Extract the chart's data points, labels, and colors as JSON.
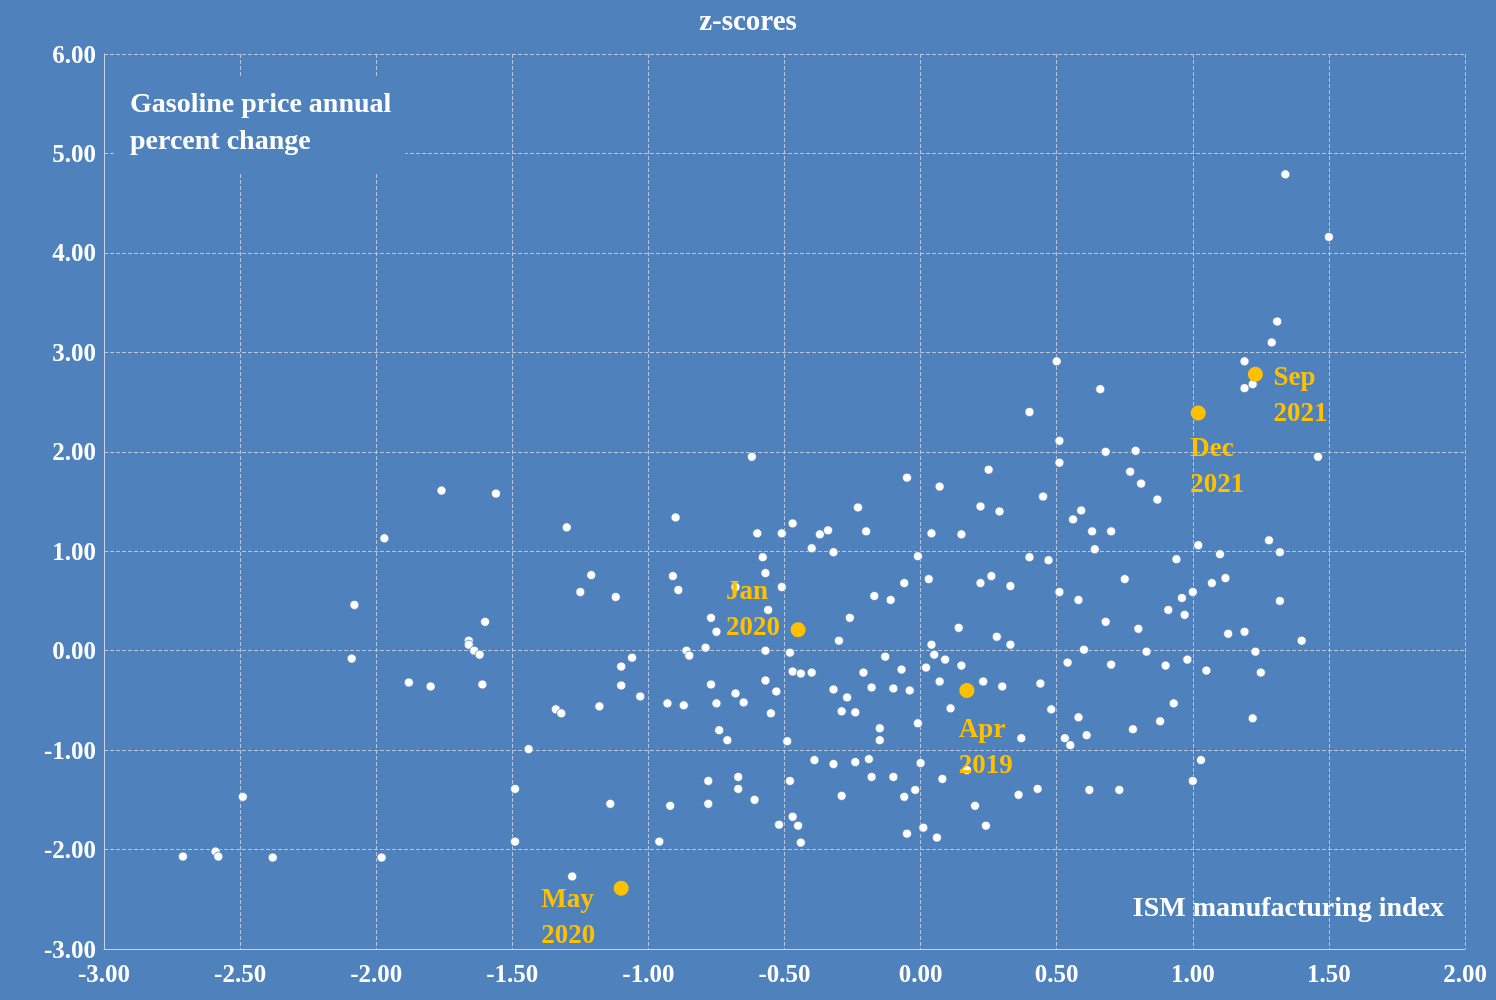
{
  "chart_data": {
    "type": "scatter",
    "title": "z-scores",
    "xlabel": "ISM manufacturing index",
    "ylabel": "Gasoline price annual percent change",
    "xlim": [
      -3,
      2
    ],
    "ylim": [
      -3,
      6
    ],
    "xticks": [
      {
        "value": -3,
        "label": "-3.00"
      },
      {
        "value": -2.5,
        "label": "-2.50"
      },
      {
        "value": -2,
        "label": "-2.00"
      },
      {
        "value": -1.5,
        "label": "-1.50"
      },
      {
        "value": -1,
        "label": "-1.00"
      },
      {
        "value": -0.5,
        "label": "-0.50"
      },
      {
        "value": 0,
        "label": "0.00"
      },
      {
        "value": 0.5,
        "label": "0.50"
      },
      {
        "value": 1,
        "label": "1.00"
      },
      {
        "value": 1.5,
        "label": "1.50"
      },
      {
        "value": 2,
        "label": "2.00"
      }
    ],
    "yticks": [
      {
        "value": -3,
        "label": "-3.00"
      },
      {
        "value": -2,
        "label": "-2.00"
      },
      {
        "value": -1,
        "label": "-1.00"
      },
      {
        "value": 0,
        "label": "0.00"
      },
      {
        "value": 1,
        "label": "1.00"
      },
      {
        "value": 2,
        "label": "2.00"
      },
      {
        "value": 3,
        "label": "3.00"
      },
      {
        "value": 4,
        "label": "4.00"
      },
      {
        "value": 5,
        "label": "5.00"
      },
      {
        "value": 6,
        "label": "6.00"
      }
    ],
    "grid": true,
    "marker": "circle",
    "series": [
      {
        "color": "#ffffff",
        "x": [
          -2.71,
          -2.59,
          -2.58,
          -2.38,
          -2.49,
          -1.98,
          -2.08,
          -2.09,
          -1.97,
          -1.88,
          -1.8,
          -1.76,
          -1.56,
          -1.66,
          -1.66,
          -1.64,
          -1.62,
          -1.6,
          -1.61,
          -1.49,
          -1.49,
          -1.44,
          -1.34,
          -1.32,
          -1.3,
          -1.28,
          -1.25,
          -1.21,
          -1.18,
          -1.14,
          -1.12,
          -1.1,
          -1.1,
          -1.06,
          -1.03,
          -0.96,
          -0.93,
          -0.92,
          -0.91,
          -0.9,
          -0.89,
          -0.87,
          -0.86,
          -0.85,
          -0.79,
          -0.77,
          -0.78,
          -0.78,
          -0.77,
          -0.75,
          -0.75,
          -0.74,
          -0.71,
          -0.68,
          -0.68,
          -0.67,
          -0.67,
          -0.65,
          -0.62,
          -0.61,
          -0.6,
          -0.58,
          -0.57,
          -0.57,
          -0.56,
          -0.57,
          -0.55,
          -0.53,
          -0.52,
          -0.51,
          -0.51,
          -0.49,
          -0.48,
          -0.48,
          -0.47,
          -0.47,
          -0.47,
          -0.45,
          -0.44,
          -0.44,
          -0.4,
          -0.4,
          -0.39,
          -0.37,
          -0.34,
          -0.32,
          -0.32,
          -0.32,
          -0.3,
          -0.29,
          -0.29,
          -0.27,
          -0.26,
          -0.24,
          -0.24,
          -0.23,
          -0.21,
          -0.2,
          -0.19,
          -0.18,
          -0.18,
          -0.17,
          -0.15,
          -0.15,
          -0.13,
          -0.11,
          -0.1,
          -0.1,
          -0.07,
          -0.06,
          -0.06,
          -0.05,
          -0.05,
          -0.04,
          -0.02,
          -0.01,
          -0.01,
          0.0,
          0.01,
          0.02,
          0.03,
          0.04,
          0.04,
          0.05,
          0.06,
          0.07,
          0.07,
          0.08,
          0.09,
          0.11,
          0.14,
          0.15,
          0.15,
          0.17,
          0.2,
          0.22,
          0.22,
          0.23,
          0.24,
          0.25,
          0.26,
          0.28,
          0.29,
          0.3,
          0.33,
          0.33,
          0.36,
          0.37,
          0.4,
          0.4,
          0.43,
          0.44,
          0.45,
          0.47,
          0.48,
          0.5,
          0.51,
          0.51,
          0.51,
          0.53,
          0.54,
          0.55,
          0.56,
          0.58,
          0.58,
          0.59,
          0.6,
          0.61,
          0.62,
          0.63,
          0.64,
          0.66,
          0.68,
          0.68,
          0.7,
          0.7,
          0.73,
          0.75,
          0.77,
          0.78,
          0.79,
          0.8,
          0.81,
          0.83,
          0.87,
          0.88,
          0.9,
          0.91,
          0.93,
          0.94,
          0.96,
          0.97,
          0.98,
          1.0,
          1.0,
          1.02,
          1.03,
          1.05,
          1.07,
          1.1,
          1.12,
          1.13,
          1.19,
          1.19,
          1.19,
          1.22,
          1.22,
          1.23,
          1.25,
          1.29,
          1.28,
          1.31,
          1.32,
          1.32,
          1.34,
          1.4,
          1.46,
          1.5
        ],
        "values": [
          -2.07,
          -2.02,
          -2.07,
          -2.08,
          -1.47,
          -2.08,
          0.46,
          -0.08,
          1.13,
          -0.32,
          -0.36,
          1.61,
          1.58,
          0.1,
          0.06,
          0.0,
          -0.04,
          0.29,
          -0.34,
          -1.39,
          -1.92,
          -0.99,
          -0.59,
          -0.63,
          1.24,
          -2.27,
          0.59,
          0.76,
          -0.56,
          -1.54,
          0.54,
          -0.35,
          -0.16,
          -0.07,
          -0.46,
          -1.92,
          -0.53,
          -1.56,
          0.75,
          1.34,
          0.61,
          -0.55,
          0.0,
          -0.05,
          0.03,
          -0.34,
          -1.31,
          -1.54,
          0.33,
          0.19,
          -0.53,
          -0.8,
          -0.9,
          0.64,
          -0.43,
          -1.27,
          -1.39,
          -0.52,
          1.95,
          -1.5,
          1.18,
          0.94,
          0.78,
          0.0,
          0.41,
          -0.3,
          -0.63,
          -0.41,
          -1.75,
          1.18,
          0.64,
          -0.91,
          -0.02,
          -1.31,
          1.28,
          -0.21,
          -1.67,
          -1.76,
          -1.93,
          -0.23,
          1.03,
          -0.22,
          -1.1,
          1.17,
          1.21,
          -0.39,
          -1.14,
          0.99,
          0.1,
          -0.61,
          -1.46,
          -0.47,
          0.33,
          -0.62,
          -1.12,
          1.44,
          -0.22,
          1.2,
          -1.09,
          -0.37,
          -1.27,
          0.55,
          -0.78,
          -0.9,
          -0.06,
          0.51,
          -1.27,
          -0.38,
          -0.19,
          -1.47,
          0.68,
          1.74,
          -1.84,
          -0.4,
          -1.4,
          0.95,
          -0.73,
          -1.13,
          -1.78,
          -0.17,
          0.72,
          1.18,
          0.06,
          -0.04,
          -1.88,
          1.65,
          -0.31,
          -1.29,
          -0.09,
          -0.58,
          0.23,
          -0.15,
          1.17,
          -1.2,
          -1.56,
          1.45,
          0.68,
          -0.31,
          -1.76,
          1.82,
          0.75,
          0.14,
          1.4,
          -0.36,
          0.06,
          0.65,
          -1.45,
          -0.88,
          2.4,
          0.94,
          -1.39,
          -0.33,
          1.55,
          0.91,
          -0.59,
          2.91,
          1.89,
          2.11,
          0.59,
          -0.88,
          -0.12,
          -0.95,
          1.32,
          0.51,
          -0.67,
          1.41,
          0.01,
          -0.85,
          -1.4,
          1.2,
          1.02,
          2.63,
          2.0,
          0.29,
          1.2,
          -0.14,
          -1.4,
          0.72,
          1.8,
          -0.79,
          2.01,
          0.22,
          1.68,
          -0.01,
          1.52,
          -0.71,
          -0.15,
          0.41,
          -0.53,
          0.92,
          0.53,
          0.36,
          -0.09,
          -1.31,
          0.59,
          1.06,
          -1.1,
          -0.2,
          0.68,
          0.97,
          0.73,
          0.17,
          2.91,
          0.19,
          2.64,
          2.68,
          -0.68,
          -0.01,
          -0.22,
          3.1,
          1.11,
          3.31,
          0.99,
          0.5,
          4.79,
          0.1,
          1.95,
          4.16
        ]
      },
      {
        "color": "#ffc000",
        "x": [
          -0.45,
          0.17,
          1.02,
          1.23,
          -1.1
        ],
        "values": [
          0.21,
          -0.4,
          2.39,
          2.78,
          -2.39
        ]
      }
    ],
    "annotations": [
      {
        "text": "Jan 2020",
        "x": -0.45,
        "y": 0.21
      },
      {
        "text": "Apr 2019",
        "x": 0.17,
        "y": -0.4
      },
      {
        "text": "Dec 2021",
        "x": 1.02,
        "y": 2.39
      },
      {
        "text": "Sep 2021",
        "x": 1.23,
        "y": 2.78
      },
      {
        "text": "May 2020",
        "x": -1.1,
        "y": -2.39
      }
    ]
  }
}
